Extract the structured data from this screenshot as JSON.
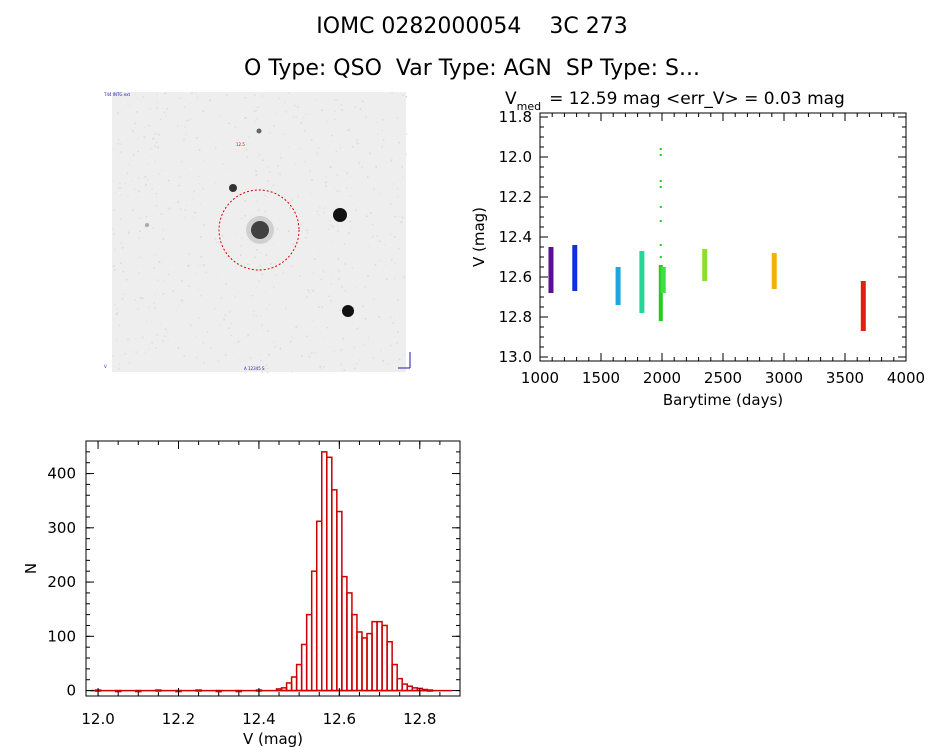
{
  "header": {
    "title_line1": "IOMC 0282000054    3C 273",
    "title_line2": "O Type: QSO  Var Type: AGN  SP Type: S..."
  },
  "image_panel": {
    "corner_labels": [
      "T44 INTG ext",
      "12.5",
      "V",
      "A 12345 S"
    ],
    "circle_color": "#dd0000"
  },
  "chart_data": [
    {
      "type": "scatter",
      "title_prefix": "V",
      "title_subscript": "med",
      "title_rest": "= 12.59 mag <err_V> = 0.03 mag",
      "xlabel": "Barytime (days)",
      "ylabel": "V (mag)",
      "xlim": [
        1000,
        4000
      ],
      "ylim": [
        13.02,
        11.78
      ],
      "xticks": [
        "1000",
        "1500",
        "2000",
        "2500",
        "3000",
        "3500",
        "4000"
      ],
      "yticks": [
        "11.8",
        "12.0",
        "12.2",
        "12.4",
        "12.6",
        "12.8",
        "13.0"
      ],
      "series": [
        {
          "color": "#5a1090",
          "x": 1090,
          "ymin": 12.45,
          "ymax": 12.68
        },
        {
          "color": "#1030e0",
          "x": 1285,
          "ymin": 12.44,
          "ymax": 12.67
        },
        {
          "color": "#1aa8e0",
          "x": 1640,
          "ymin": 12.55,
          "ymax": 12.74
        },
        {
          "color": "#20d898",
          "x": 1835,
          "ymin": 12.47,
          "ymax": 12.78
        },
        {
          "color": "#22cc22",
          "x": 1990,
          "ymin": 11.96,
          "ymax": 12.82
        },
        {
          "color": "#44dd44",
          "x": 2010,
          "ymin": 12.55,
          "ymax": 12.68
        },
        {
          "color": "#88e030",
          "x": 2350,
          "ymin": 12.46,
          "ymax": 12.62
        },
        {
          "color": "#f0b400",
          "x": 2920,
          "ymin": 12.48,
          "ymax": 12.66
        },
        {
          "color": "#e02010",
          "x": 3650,
          "ymin": 12.62,
          "ymax": 12.87
        }
      ],
      "grid": false
    },
    {
      "type": "bar",
      "xlabel": "V (mag)",
      "ylabel": "N",
      "xlim": [
        11.97,
        12.9
      ],
      "ylim": [
        -10,
        460
      ],
      "xticks": [
        "12.0",
        "12.2",
        "12.4",
        "12.6",
        "12.8"
      ],
      "yticks": [
        "0",
        "100",
        "200",
        "300",
        "400"
      ],
      "bin_width": 0.0125,
      "bins": [
        {
          "x": 12.525,
          "n": 140
        },
        {
          "x": 12.5375,
          "n": 220
        },
        {
          "x": 12.55,
          "n": 312
        },
        {
          "x": 12.5625,
          "n": 440
        },
        {
          "x": 12.575,
          "n": 430
        },
        {
          "x": 12.5875,
          "n": 370
        },
        {
          "x": 12.6,
          "n": 330
        },
        {
          "x": 12.6125,
          "n": 210
        },
        {
          "x": 12.625,
          "n": 180
        },
        {
          "x": 12.6375,
          "n": 140
        },
        {
          "x": 12.65,
          "n": 108
        },
        {
          "x": 12.6625,
          "n": 97
        },
        {
          "x": 12.675,
          "n": 105
        },
        {
          "x": 12.6875,
          "n": 127
        },
        {
          "x": 12.7,
          "n": 127
        },
        {
          "x": 12.7125,
          "n": 120
        },
        {
          "x": 12.725,
          "n": 90
        },
        {
          "x": 12.7375,
          "n": 48
        },
        {
          "x": 12.75,
          "n": 22
        },
        {
          "x": 12.7625,
          "n": 12
        },
        {
          "x": 12.775,
          "n": 8
        },
        {
          "x": 12.7875,
          "n": 5
        },
        {
          "x": 12.8,
          "n": 4
        },
        {
          "x": 12.8125,
          "n": 2
        },
        {
          "x": 12.825,
          "n": 1
        }
      ],
      "baseline_bins_left": [
        {
          "x": 12.0,
          "n": 1
        },
        {
          "x": 12.05,
          "n": 0
        },
        {
          "x": 12.1,
          "n": 0
        },
        {
          "x": 12.15,
          "n": 1
        },
        {
          "x": 12.2,
          "n": 0
        },
        {
          "x": 12.25,
          "n": 1
        },
        {
          "x": 12.3,
          "n": 0
        },
        {
          "x": 12.35,
          "n": 0
        },
        {
          "x": 12.4,
          "n": 1
        },
        {
          "x": 12.45,
          "n": 3
        },
        {
          "x": 12.4625,
          "n": 5
        },
        {
          "x": 12.475,
          "n": 14
        },
        {
          "x": 12.4875,
          "n": 25
        },
        {
          "x": 12.5,
          "n": 48
        },
        {
          "x": 12.5125,
          "n": 85
        }
      ],
      "bar_color": "#cc0000"
    }
  ]
}
